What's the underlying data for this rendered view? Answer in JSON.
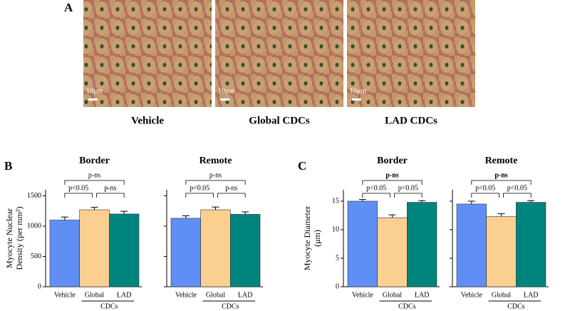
{
  "figure": {
    "panel_labels": [
      "A",
      "B",
      "C"
    ],
    "images": [
      {
        "caption": "Vehicle",
        "scale": "10μm"
      },
      {
        "caption": "Global CDCs",
        "scale": "10μm"
      },
      {
        "caption": "LAD CDCs",
        "scale": "10μm"
      }
    ]
  },
  "chart_data": [
    {
      "type": "bar",
      "title": "Border",
      "categories": [
        "Vehicle",
        "Global",
        "LAD"
      ],
      "group_label": "CDCs",
      "values": [
        1100,
        1270,
        1200
      ],
      "errors": [
        50,
        40,
        45
      ],
      "colors": [
        "#5f8ff5",
        "#fbcf8f",
        "#00847e"
      ],
      "ylabel": [
        "Myocyte Nuclear",
        "Density (per mm²)"
      ],
      "ylim": [
        0,
        1600
      ],
      "yticks": [
        0,
        500,
        1000,
        1500
      ],
      "show_tick_labels": true,
      "annotations": [
        "p-ns",
        "p<0.05",
        "p-ns"
      ]
    },
    {
      "type": "bar",
      "title": "Remote",
      "categories": [
        "Vehicle",
        "Global",
        "LAD"
      ],
      "group_label": "CDCs",
      "values": [
        1130,
        1270,
        1195
      ],
      "errors": [
        40,
        45,
        40
      ],
      "colors": [
        "#5f8ff5",
        "#fbcf8f",
        "#00847e"
      ],
      "ylim": [
        0,
        1600
      ],
      "yticks": [
        0,
        500,
        1000,
        1500
      ],
      "show_tick_labels": false,
      "annotations": [
        "p-ns",
        "p<0.05",
        "p-ns"
      ]
    },
    {
      "type": "bar",
      "title": "Border",
      "categories": [
        "Vehicle",
        "Global",
        "LAD"
      ],
      "group_label": "CDCs",
      "values": [
        15.0,
        12.1,
        14.8
      ],
      "errors": [
        0.3,
        0.5,
        0.3
      ],
      "colors": [
        "#5f8ff5",
        "#fbcf8f",
        "#00847e"
      ],
      "ylabel": [
        "Myocyte Diameter",
        "(μm)"
      ],
      "ylim": [
        0,
        17
      ],
      "yticks": [
        0,
        5,
        10,
        15
      ],
      "show_tick_labels": true,
      "annotations": [
        "p-ns",
        "p<0.05",
        "p<0.05"
      ]
    },
    {
      "type": "bar",
      "title": "Remote",
      "categories": [
        "Vehicle",
        "Global",
        "LAD"
      ],
      "group_label": "CDCs",
      "values": [
        14.5,
        12.3,
        14.8
      ],
      "errors": [
        0.5,
        0.5,
        0.3
      ],
      "colors": [
        "#5f8ff5",
        "#fbcf8f",
        "#00847e"
      ],
      "ylim": [
        0,
        17
      ],
      "yticks": [
        0,
        5,
        10,
        15
      ],
      "show_tick_labels": false,
      "annotations": [
        "p-ns",
        "p<0.05",
        "p<0.05"
      ]
    }
  ]
}
